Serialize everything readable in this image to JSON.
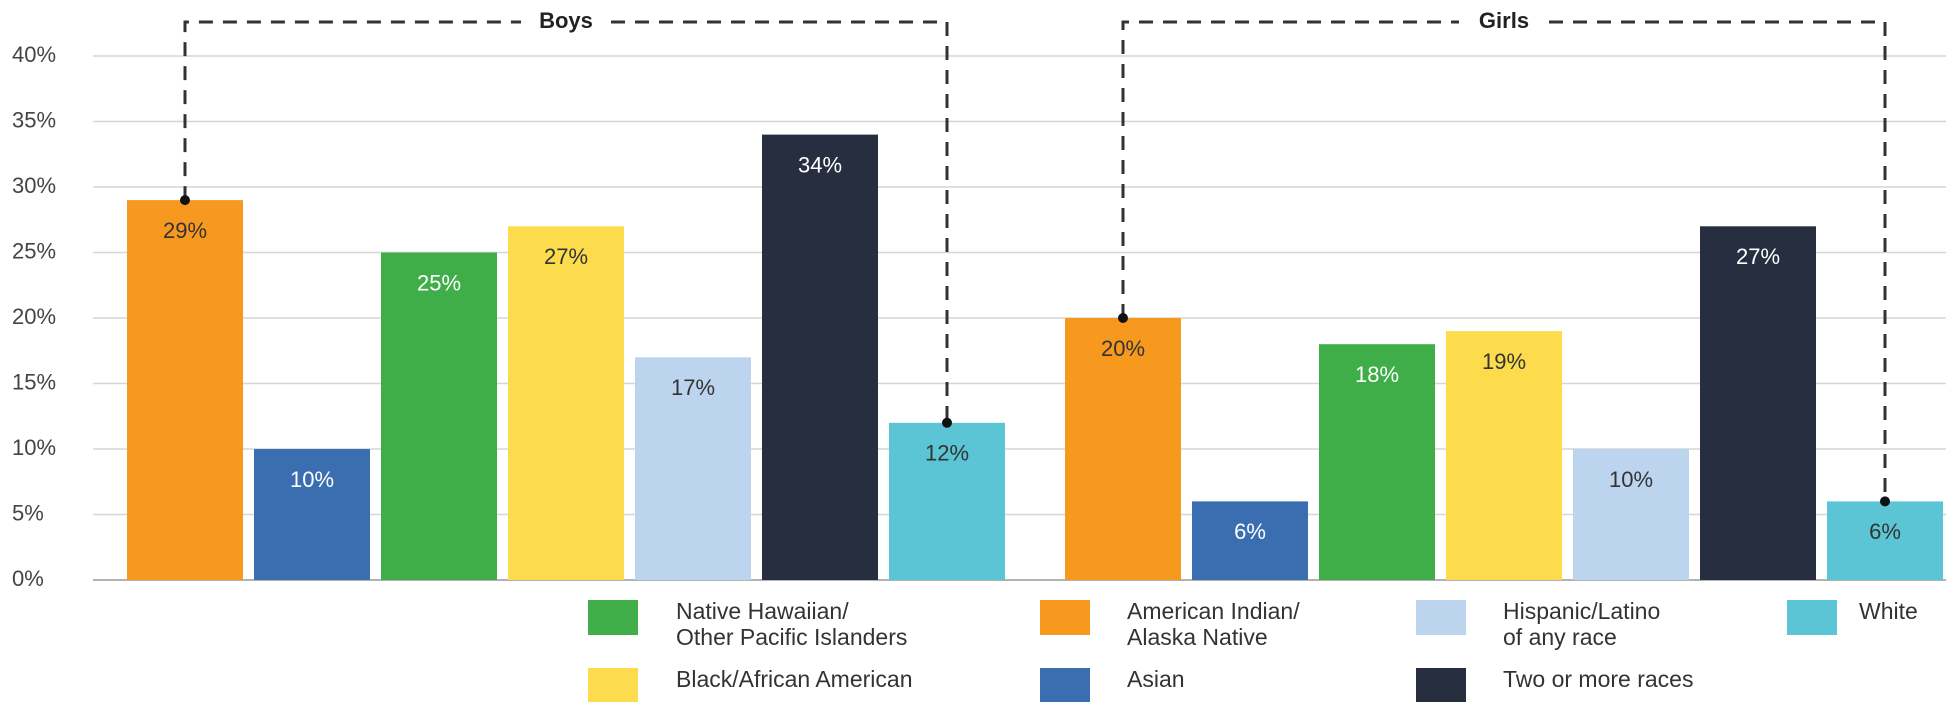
{
  "chart_data": {
    "type": "bar",
    "categories": [
      "Boys",
      "Girls"
    ],
    "series": [
      {
        "name": "American Indian/\nAlaska Native",
        "color": "#f7991f",
        "values": [
          29,
          20
        ],
        "value_labels": [
          "29%",
          "20%"
        ]
      },
      {
        "name": "Asian",
        "color": "#3b6eb1",
        "values": [
          10,
          6
        ],
        "value_labels": [
          "10%",
          "6%"
        ]
      },
      {
        "name": "Native Hawaiian/\nOther Pacific Islanders",
        "color": "#3fae49",
        "values": [
          25,
          18
        ],
        "value_labels": [
          "25%",
          "18%"
        ]
      },
      {
        "name": "Black/African American",
        "color": "#fcdc4d",
        "values": [
          27,
          19
        ],
        "value_labels": [
          "27%",
          "19%"
        ]
      },
      {
        "name": "Hispanic/Latino\nof any race",
        "color": "#bdd4ee",
        "values": [
          17,
          10
        ],
        "value_labels": [
          "17%",
          "10%"
        ]
      },
      {
        "name": "Two or more races",
        "color": "#272e3f",
        "values": [
          34,
          27
        ],
        "value_labels": [
          "34%",
          "27%"
        ]
      },
      {
        "name": "White",
        "color": "#5bc5d5",
        "values": [
          12,
          6
        ],
        "value_labels": [
          "12%",
          "6%"
        ]
      }
    ],
    "ylim": [
      0,
      40
    ],
    "yticks": [
      {
        "value": 0,
        "label": "0%"
      },
      {
        "value": 5,
        "label": "5%"
      },
      {
        "value": 10,
        "label": "10%"
      },
      {
        "value": 15,
        "label": "15%"
      },
      {
        "value": 20,
        "label": "20%"
      },
      {
        "value": 25,
        "label": "25%"
      },
      {
        "value": 30,
        "label": "30%"
      },
      {
        "value": 35,
        "label": "35%"
      },
      {
        "value": 40,
        "label": "40%"
      }
    ],
    "grid": true
  }
}
